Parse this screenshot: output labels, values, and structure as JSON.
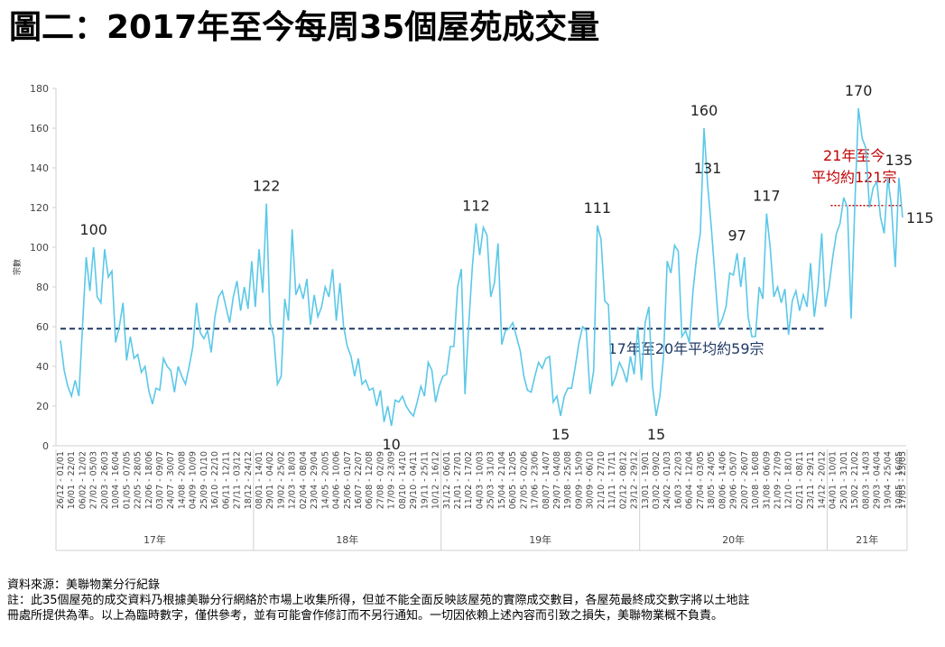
{
  "chart_data": {
    "type": "line",
    "title": "圖二：2017年至今每周35個屋苑成交量",
    "y_label": "宗數",
    "ylim": [
      0,
      180
    ],
    "yticks": [
      0,
      20,
      40,
      60,
      80,
      100,
      120,
      140,
      160,
      180
    ],
    "grid": false,
    "categories": [
      "26/12 - 01/01",
      null,
      null,
      "16/01 - 22/01",
      null,
      null,
      "06/02 - 12/02",
      null,
      null,
      "27/02 - 05/03",
      null,
      null,
      "20/03 - 26/03",
      null,
      null,
      "10/04 - 16/04",
      null,
      null,
      "01/05 - 07/05",
      null,
      null,
      "22/05 - 28/05",
      null,
      null,
      "12/06 - 18/06",
      null,
      null,
      "03/07 - 09/07",
      null,
      null,
      "24/07 - 30/07",
      null,
      null,
      "14/08 - 20/08",
      null,
      null,
      "04/09 - 10/09",
      null,
      null,
      "25/09 - 01/10",
      null,
      null,
      "16/10 - 22/10",
      null,
      null,
      "06/11 - 12/11",
      null,
      null,
      "27/11 - 03/12",
      null,
      null,
      "18/12 - 24/12",
      null,
      null,
      "08/01 - 14/01",
      null,
      null,
      "29/01 - 04/02",
      null,
      null,
      "19/02 - 25/02",
      null,
      null,
      "12/03 - 18/03",
      null,
      null,
      "02/04 - 08/04",
      null,
      null,
      "23/04 - 29/04",
      null,
      null,
      "14/05 - 20/05",
      null,
      null,
      "04/06 - 10/06",
      null,
      null,
      "25/06 - 01/07",
      null,
      null,
      "16/07 - 22/07",
      null,
      null,
      "06/08 - 12/08",
      null,
      null,
      "27/08 - 02/09",
      null,
      null,
      "17/09 - 23/09",
      null,
      null,
      "08/10 - 14/10",
      null,
      null,
      "29/10 - 04/11",
      null,
      null,
      "19/11 - 25/11",
      null,
      null,
      "10/12 - 16/12",
      null,
      null,
      "31/12 - 06/01",
      null,
      null,
      "21/01 - 27/01",
      null,
      null,
      "11/02 - 17/02",
      null,
      null,
      "04/03 - 10/03",
      null,
      null,
      "25/03 - 31/03",
      null,
      null,
      "15/04 - 21/04",
      null,
      null,
      "06/05 - 12/05",
      null,
      null,
      "27/05 - 02/06",
      null,
      null,
      "17/06 - 23/06",
      null,
      null,
      "08/07 - 14/07",
      null,
      null,
      "29/07 - 04/08",
      null,
      null,
      "19/08 - 25/08",
      null,
      null,
      "09/09 - 15/09",
      null,
      null,
      "30/09 - 06/10",
      null,
      null,
      "21/10 - 27/10",
      null,
      null,
      "11/11 - 17/11",
      null,
      null,
      "02/12 - 08/12",
      null,
      null,
      "23/12 - 29/12",
      null,
      null,
      "13/01 - 19/01",
      null,
      null,
      "03/02 - 09/02",
      null,
      null,
      "24/02 - 01/03",
      null,
      null,
      "16/03 - 22/03",
      null,
      null,
      "06/04 - 12/04",
      null,
      null,
      "27/04 - 03/05",
      null,
      null,
      "18/05 - 24/05",
      null,
      null,
      "08/06 - 14/06",
      null,
      null,
      "29/06 - 05/07",
      null,
      null,
      "20/07 - 26/07",
      null,
      null,
      "10/08 - 16/08",
      null,
      null,
      "31/08 - 06/09",
      null,
      null,
      "21/09 - 27/09",
      null,
      null,
      "12/10 - 18/10",
      null,
      null,
      "02/11 - 08/11",
      null,
      null,
      "23/11 - 29/11",
      null,
      null,
      "14/12 - 20/12",
      null,
      null,
      "04/01 - 10/01",
      null,
      null,
      "25/01 - 31/01",
      null,
      null,
      "15/02 - 21/02",
      null,
      null,
      "08/03 - 14/03",
      null,
      null,
      "29/03 - 04/04",
      null,
      null,
      "19/04 - 25/04",
      null,
      null,
      "10/05 - 16/05",
      "17/05 - 23/05"
    ],
    "groups": [
      "17年",
      "18年",
      "19年",
      "20年",
      "21年"
    ],
    "color": "#5bc8e8",
    "values": [
      53,
      38,
      30,
      25,
      33,
      25,
      60,
      95,
      78,
      100,
      75,
      72,
      99,
      85,
      88,
      52,
      60,
      72,
      43,
      55,
      44,
      46,
      37,
      40,
      28,
      21,
      29,
      28,
      44,
      40,
      38,
      27,
      40,
      35,
      31,
      40,
      50,
      72,
      57,
      54,
      58,
      47,
      65,
      75,
      78,
      70,
      62,
      75,
      83,
      68,
      80,
      69,
      93,
      70,
      99,
      77,
      122,
      62,
      55,
      31,
      35,
      74,
      63,
      109,
      76,
      81,
      74,
      84,
      61,
      76,
      65,
      70,
      80,
      75,
      89,
      63,
      82,
      60,
      50,
      45,
      35,
      44,
      31,
      33,
      28,
      29,
      20,
      28,
      12,
      20,
      10,
      23,
      22,
      25,
      20,
      17,
      15,
      22,
      30,
      25,
      42,
      38,
      22,
      30,
      35,
      36,
      50,
      50,
      80,
      89,
      26,
      60,
      90,
      112,
      96,
      110,
      106,
      75,
      82,
      102,
      51,
      58,
      59,
      62,
      55,
      48,
      35,
      28,
      27,
      35,
      42,
      39,
      44,
      45,
      22,
      25,
      15,
      25,
      29,
      29,
      40,
      52,
      60,
      58,
      26,
      38,
      111,
      104,
      73,
      71,
      30,
      35,
      42,
      38,
      32,
      45,
      36,
      60,
      33,
      62,
      70,
      30,
      15,
      25,
      45,
      93,
      87,
      101,
      98,
      55,
      58,
      52,
      78,
      95,
      107,
      160,
      131,
      110,
      85,
      60,
      64,
      70,
      87,
      86,
      97,
      80,
      95,
      65,
      55,
      55,
      80,
      74,
      117,
      100,
      75,
      80,
      72,
      79,
      56,
      73,
      78,
      68,
      76,
      70,
      92,
      65,
      80,
      107,
      70,
      80,
      95,
      107,
      112,
      125,
      120,
      64,
      120,
      170,
      155,
      150,
      120,
      130,
      133,
      115,
      107,
      135,
      120,
      90,
      135,
      115
    ],
    "value_labels": [
      null,
      null,
      null,
      null,
      null,
      null,
      null,
      null,
      null,
      "100",
      null,
      null,
      null,
      null,
      null,
      null,
      null,
      null,
      null,
      null,
      null,
      null,
      null,
      null,
      null,
      null,
      null,
      null,
      null,
      null,
      null,
      null,
      null,
      null,
      null,
      null,
      null,
      null,
      null,
      null,
      null,
      null,
      null,
      null,
      null,
      null,
      null,
      null,
      null,
      null,
      null,
      null,
      null,
      null,
      null,
      null,
      "122",
      null,
      null,
      null,
      null,
      null,
      null,
      null,
      null,
      null,
      null,
      null,
      null,
      null,
      null,
      null,
      null,
      null,
      null,
      null,
      null,
      null,
      null,
      null,
      null,
      null,
      null,
      null,
      null,
      null,
      null,
      null,
      null,
      null,
      "10",
      null,
      null,
      null,
      null,
      null,
      null,
      null,
      null,
      null,
      null,
      null,
      null,
      null,
      null,
      null,
      null,
      null,
      null,
      null,
      null,
      null,
      null,
      "112",
      null,
      null,
      null,
      null,
      null,
      null,
      null,
      null,
      null,
      null,
      null,
      null,
      null,
      null,
      null,
      null,
      null,
      null,
      null,
      null,
      null,
      null,
      "15",
      null,
      null,
      null,
      null,
      null,
      null,
      null,
      null,
      null,
      "111",
      null,
      null,
      null,
      null,
      null,
      null,
      null,
      null,
      null,
      null,
      null,
      null,
      null,
      null,
      null,
      "15",
      null,
      null,
      null,
      null,
      null,
      null,
      null,
      null,
      null,
      null,
      null,
      null,
      "160",
      "131",
      null,
      null,
      null,
      null,
      null,
      null,
      null,
      "97",
      null,
      null,
      null,
      null,
      null,
      null,
      null,
      "117",
      null,
      null,
      null,
      null,
      null,
      null,
      null,
      null,
      null,
      null,
      null,
      null,
      null,
      null,
      null,
      null,
      null,
      null,
      null,
      null,
      null,
      null,
      null,
      null,
      "170",
      null,
      null,
      null,
      null,
      null,
      null,
      null,
      null,
      null,
      null,
      "135",
      "115"
    ],
    "reference_lines": [
      {
        "value": 59,
        "label": [
          "17年至20年平均約59宗"
        ],
        "color": "#1f3864"
      },
      {
        "value": 121,
        "label": [
          "21年至今",
          "平均約121宗"
        ],
        "color": "#c00000"
      }
    ],
    "footnotes": [
      "資料來源：美聯物業分行紀錄",
      "註：此35個屋苑的成交資料乃根據美聯分行網絡於市場上收集所得，但並不能全面反映該屋苑的實際成交數目，各屋苑最終成交數字將以土地註",
      "冊處所提供為準。以上為臨時數字，僅供參考，並有可能會作修訂而不另行通知。一切因依賴上述內容而引致之損失，美聯物業概不負責。"
    ]
  }
}
